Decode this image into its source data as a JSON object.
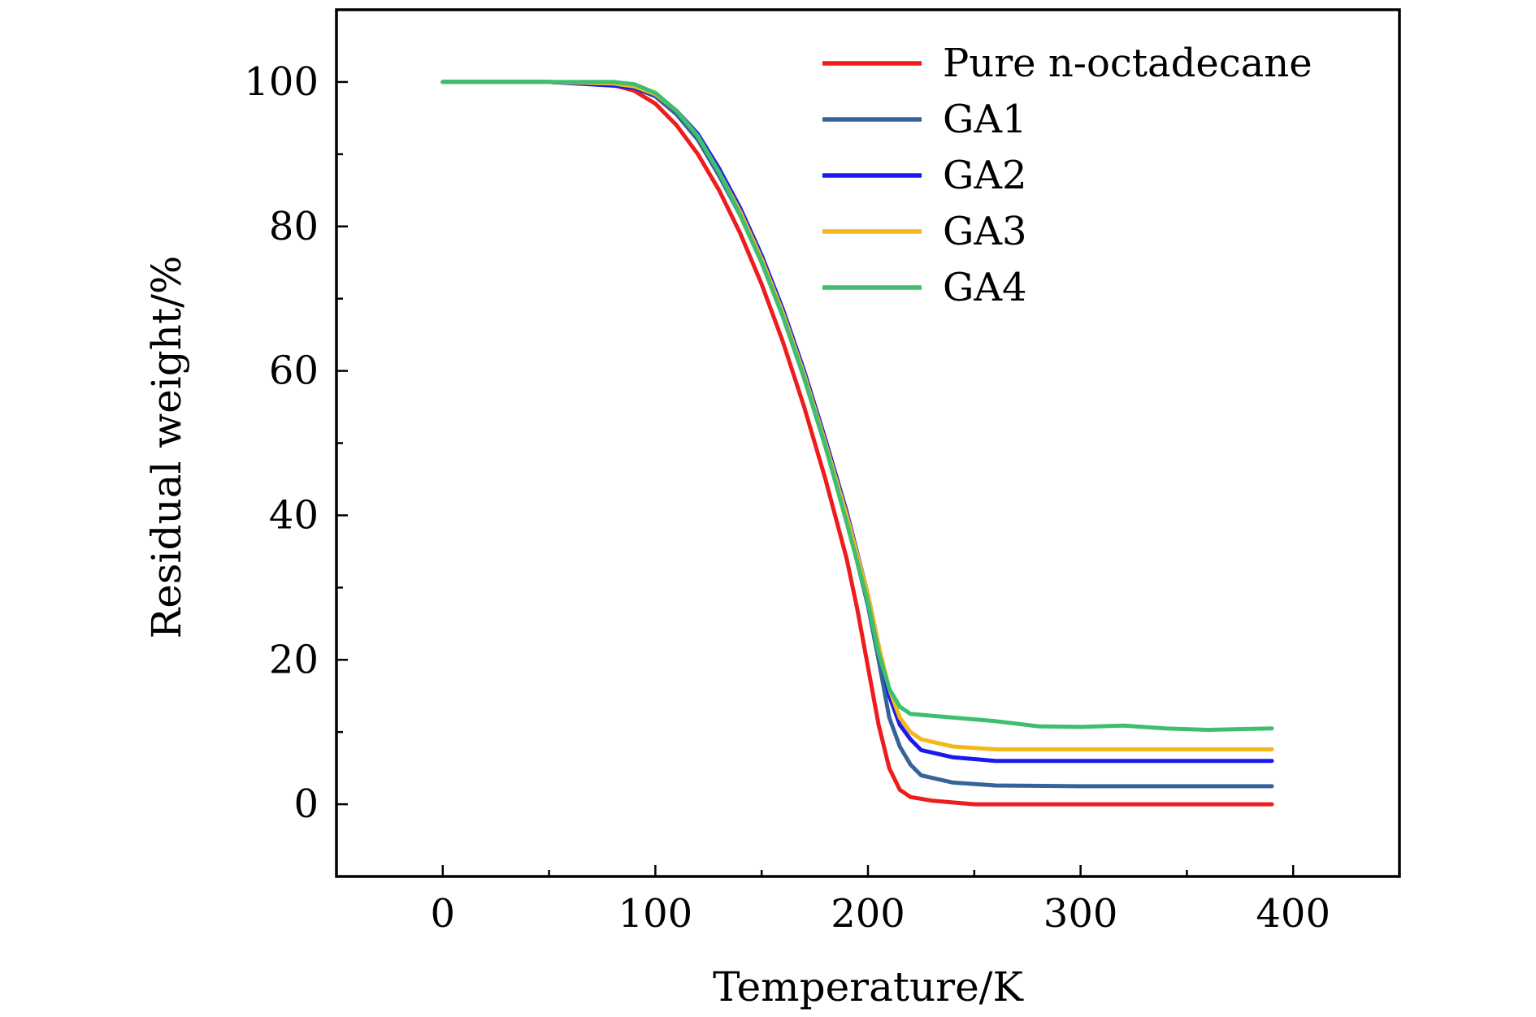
{
  "chart_data": {
    "type": "line",
    "title": "",
    "xlabel": "Temperature/K",
    "ylabel": "Residual weight/%",
    "xlim": [
      -50,
      450
    ],
    "ylim": [
      -10,
      110
    ],
    "xticks": [
      0,
      100,
      200,
      300,
      400
    ],
    "yticks": [
      0,
      20,
      40,
      60,
      80,
      100
    ],
    "grid": false,
    "legend_position": "top-right",
    "series": [
      {
        "name": "Pure n-octadecane",
        "color": "#ee1c1c",
        "points": [
          [
            0,
            100
          ],
          [
            50,
            100
          ],
          [
            80,
            99.6
          ],
          [
            90,
            98.8
          ],
          [
            100,
            97
          ],
          [
            110,
            94
          ],
          [
            120,
            90
          ],
          [
            130,
            85
          ],
          [
            140,
            79
          ],
          [
            150,
            72
          ],
          [
            160,
            64
          ],
          [
            170,
            55
          ],
          [
            180,
            45
          ],
          [
            190,
            34
          ],
          [
            195,
            27
          ],
          [
            200,
            19
          ],
          [
            205,
            11
          ],
          [
            210,
            5
          ],
          [
            215,
            2
          ],
          [
            220,
            1
          ],
          [
            230,
            0.5
          ],
          [
            250,
            0
          ],
          [
            300,
            0
          ],
          [
            390,
            0
          ]
        ]
      },
      {
        "name": "GA1",
        "color": "#35649a",
        "points": [
          [
            0,
            100
          ],
          [
            50,
            100
          ],
          [
            80,
            99.6
          ],
          [
            90,
            99.2
          ],
          [
            100,
            98
          ],
          [
            110,
            95.5
          ],
          [
            120,
            92
          ],
          [
            130,
            87
          ],
          [
            140,
            81.5
          ],
          [
            150,
            75
          ],
          [
            160,
            67.5
          ],
          [
            170,
            59
          ],
          [
            180,
            49.5
          ],
          [
            190,
            39.5
          ],
          [
            200,
            27.5
          ],
          [
            205,
            20
          ],
          [
            210,
            12
          ],
          [
            215,
            8
          ],
          [
            220,
            5.5
          ],
          [
            225,
            4
          ],
          [
            240,
            3
          ],
          [
            260,
            2.6
          ],
          [
            300,
            2.5
          ],
          [
            390,
            2.5
          ]
        ]
      },
      {
        "name": "GA2",
        "color": "#1a1aee",
        "points": [
          [
            0,
            100
          ],
          [
            50,
            100
          ],
          [
            80,
            99.5
          ],
          [
            90,
            99.2
          ],
          [
            100,
            98.2
          ],
          [
            110,
            96
          ],
          [
            120,
            92.8
          ],
          [
            130,
            88
          ],
          [
            140,
            82.5
          ],
          [
            150,
            76
          ],
          [
            160,
            68.5
          ],
          [
            170,
            60
          ],
          [
            180,
            50.5
          ],
          [
            190,
            40.5
          ],
          [
            200,
            29
          ],
          [
            205,
            22
          ],
          [
            210,
            15
          ],
          [
            215,
            11
          ],
          [
            220,
            9
          ],
          [
            225,
            7.5
          ],
          [
            240,
            6.5
          ],
          [
            260,
            6
          ],
          [
            300,
            6
          ],
          [
            390,
            6
          ]
        ]
      },
      {
        "name": "GA3",
        "color": "#f5b81c",
        "points": [
          [
            0,
            100
          ],
          [
            50,
            100
          ],
          [
            80,
            99.8
          ],
          [
            90,
            99.4
          ],
          [
            100,
            98.3
          ],
          [
            110,
            96
          ],
          [
            120,
            92.5
          ],
          [
            130,
            87.5
          ],
          [
            140,
            82
          ],
          [
            150,
            75.5
          ],
          [
            160,
            68
          ],
          [
            170,
            59.5
          ],
          [
            180,
            50
          ],
          [
            190,
            40
          ],
          [
            200,
            29
          ],
          [
            205,
            22
          ],
          [
            210,
            16
          ],
          [
            215,
            12
          ],
          [
            220,
            10
          ],
          [
            225,
            9
          ],
          [
            240,
            8
          ],
          [
            260,
            7.6
          ],
          [
            300,
            7.6
          ],
          [
            390,
            7.6
          ]
        ]
      },
      {
        "name": "GA4",
        "color": "#3dbf6e",
        "points": [
          [
            0,
            100
          ],
          [
            50,
            100
          ],
          [
            80,
            100
          ],
          [
            90,
            99.7
          ],
          [
            100,
            98.5
          ],
          [
            110,
            96
          ],
          [
            120,
            92.5
          ],
          [
            130,
            87.5
          ],
          [
            140,
            81.5
          ],
          [
            150,
            75
          ],
          [
            160,
            67.5
          ],
          [
            170,
            59
          ],
          [
            180,
            49.5
          ],
          [
            190,
            39
          ],
          [
            200,
            28
          ],
          [
            205,
            21
          ],
          [
            210,
            16
          ],
          [
            215,
            13.5
          ],
          [
            220,
            12.5
          ],
          [
            240,
            12
          ],
          [
            260,
            11.5
          ],
          [
            280,
            10.8
          ],
          [
            300,
            10.7
          ],
          [
            320,
            10.9
          ],
          [
            340,
            10.5
          ],
          [
            360,
            10.3
          ],
          [
            390,
            10.5
          ]
        ]
      }
    ]
  }
}
